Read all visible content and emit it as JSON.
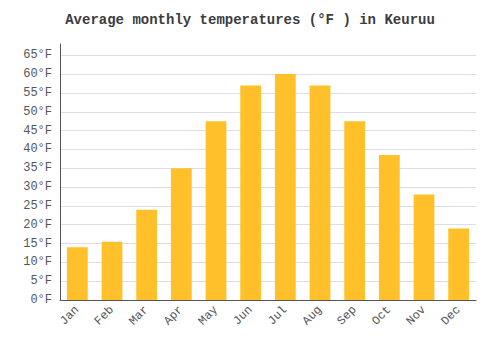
{
  "chart_data": {
    "type": "bar",
    "title": "Average monthly temperatures (°F ) in Keuruu",
    "categories": [
      "Jan",
      "Feb",
      "Mar",
      "Apr",
      "May",
      "Jun",
      "Jul",
      "Aug",
      "Sep",
      "Oct",
      "Nov",
      "Dec"
    ],
    "values": [
      14,
      15.5,
      24,
      35,
      47.5,
      57,
      60,
      57,
      47.5,
      38.5,
      28,
      19
    ],
    "color": "#FFC02A",
    "ylim": [
      0,
      68
    ],
    "yticks": [
      {
        "value": 0,
        "label": "0°F"
      },
      {
        "value": 5,
        "label": "5°F"
      },
      {
        "value": 10,
        "label": "10°F"
      },
      {
        "value": 15,
        "label": "15°F"
      },
      {
        "value": 20,
        "label": "20°F"
      },
      {
        "value": 25,
        "label": "25°F"
      },
      {
        "value": 30,
        "label": "30°F"
      },
      {
        "value": 35,
        "label": "35°F"
      },
      {
        "value": 40,
        "label": "40°F"
      },
      {
        "value": 45,
        "label": "45°F"
      },
      {
        "value": 50,
        "label": "50°F"
      },
      {
        "value": 55,
        "label": "55°F"
      },
      {
        "value": 60,
        "label": "60°F"
      },
      {
        "value": 65,
        "label": "65°F"
      }
    ],
    "grid": true
  }
}
